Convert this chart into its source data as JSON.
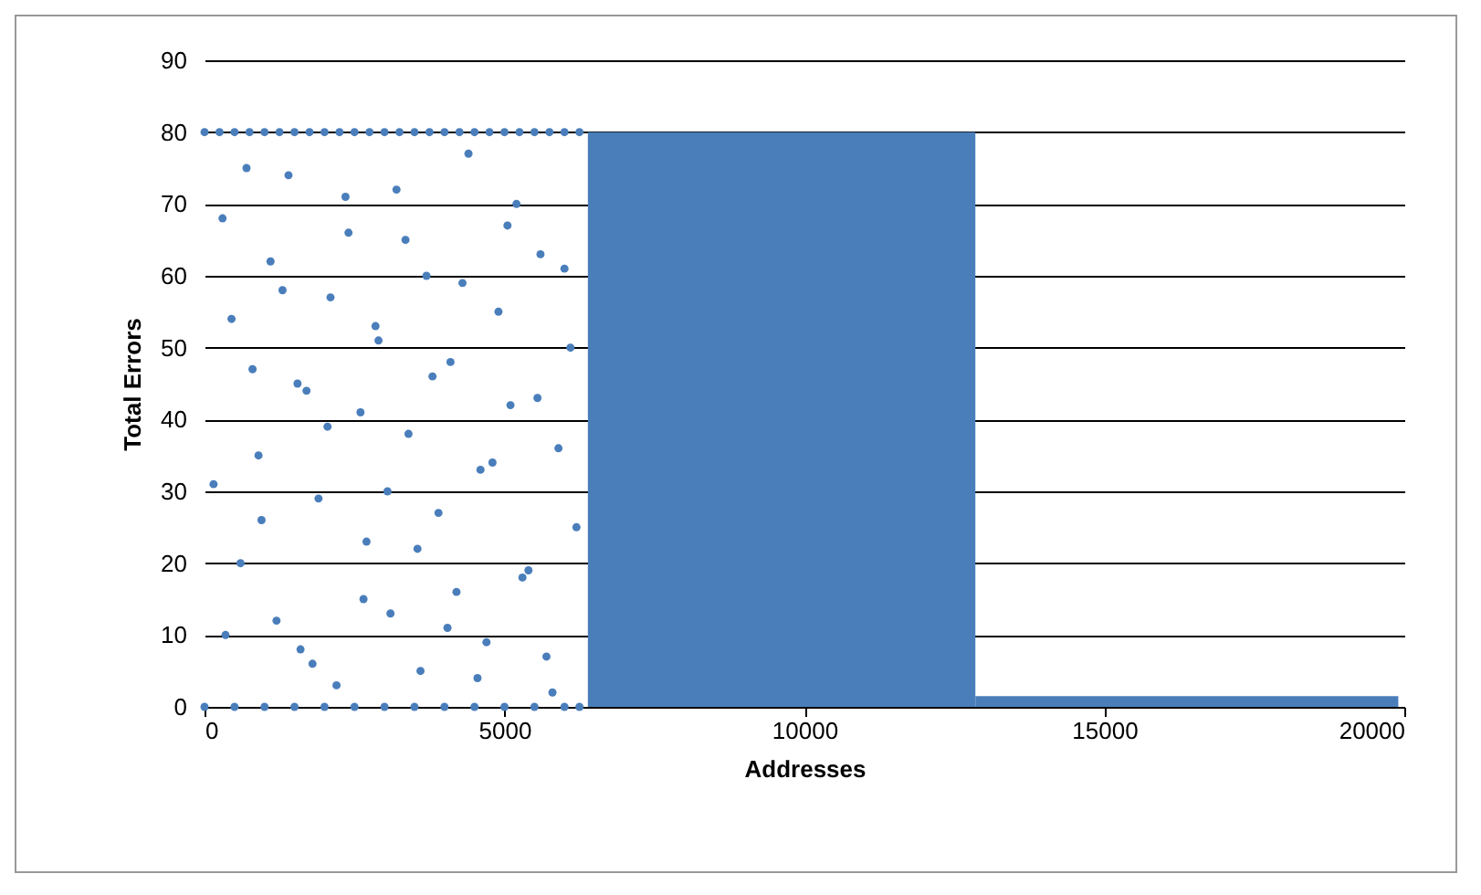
{
  "chart_data": {
    "type": "scatter",
    "xlabel": "Addresses",
    "ylabel": "Total Errors",
    "xlim": [
      0,
      20000
    ],
    "xticks": [
      0,
      5000,
      10000,
      15000,
      20000
    ],
    "ylim": [
      0,
      90
    ],
    "yticks": [
      0,
      10,
      20,
      30,
      40,
      50,
      60,
      70,
      80,
      90
    ],
    "grid": "y",
    "series": [
      {
        "color": "#4a7ebb",
        "x": [
          0,
          250,
          500,
          750,
          1000,
          1250,
          1500,
          1750,
          2000,
          2250,
          2500,
          2750,
          3000,
          3250,
          3500,
          3750,
          4000,
          4250,
          4500,
          4750,
          5000,
          5250,
          5500,
          5750,
          6000,
          6250,
          0,
          500,
          1000,
          1500,
          2000,
          2500,
          3000,
          3500,
          4000,
          4500,
          5000,
          5500,
          6000,
          6250,
          300,
          450,
          600,
          800,
          900,
          1100,
          1200,
          1400,
          1600,
          1700,
          1900,
          2100,
          2200,
          2400,
          2600,
          2700,
          2900,
          3100,
          3200,
          3400,
          3600,
          3700,
          3900,
          4100,
          4200,
          4400,
          4600,
          4700,
          4900,
          5100,
          5200,
          5400,
          5600,
          5800,
          5900,
          6100,
          150,
          350,
          700,
          950,
          1300,
          1550,
          1800,
          2050,
          2350,
          2650,
          2850,
          3050,
          3350,
          3550,
          3800,
          4050,
          4300,
          4550,
          4800,
          5050,
          5300,
          5550,
          5700,
          6000,
          6200
        ],
        "values": [
          80,
          80,
          80,
          80,
          80,
          80,
          80,
          80,
          80,
          80,
          80,
          80,
          80,
          80,
          80,
          80,
          80,
          80,
          80,
          80,
          80,
          80,
          80,
          80,
          80,
          80,
          0,
          0,
          0,
          0,
          0,
          0,
          0,
          0,
          0,
          0,
          0,
          0,
          0,
          0,
          68,
          54,
          20,
          47,
          35,
          62,
          12,
          74,
          8,
          44,
          29,
          57,
          3,
          66,
          41,
          23,
          51,
          13,
          72,
          38,
          5,
          60,
          27,
          48,
          16,
          77,
          33,
          9,
          55,
          42,
          70,
          19,
          63,
          2,
          36,
          50,
          31,
          10,
          75,
          26,
          58,
          45,
          6,
          39,
          71,
          15,
          53,
          30,
          65,
          22,
          46,
          11,
          59,
          4,
          34,
          67,
          18,
          43,
          7,
          61,
          25
        ]
      },
      {
        "type": "area",
        "color": "#4a7ebb",
        "x": [
          6390,
          12850
        ],
        "values": [
          80,
          80
        ]
      },
      {
        "type": "area",
        "color": "#4a7ebb",
        "x": [
          12850,
          19900
        ],
        "values": [
          1.5,
          1.5
        ]
      }
    ]
  }
}
